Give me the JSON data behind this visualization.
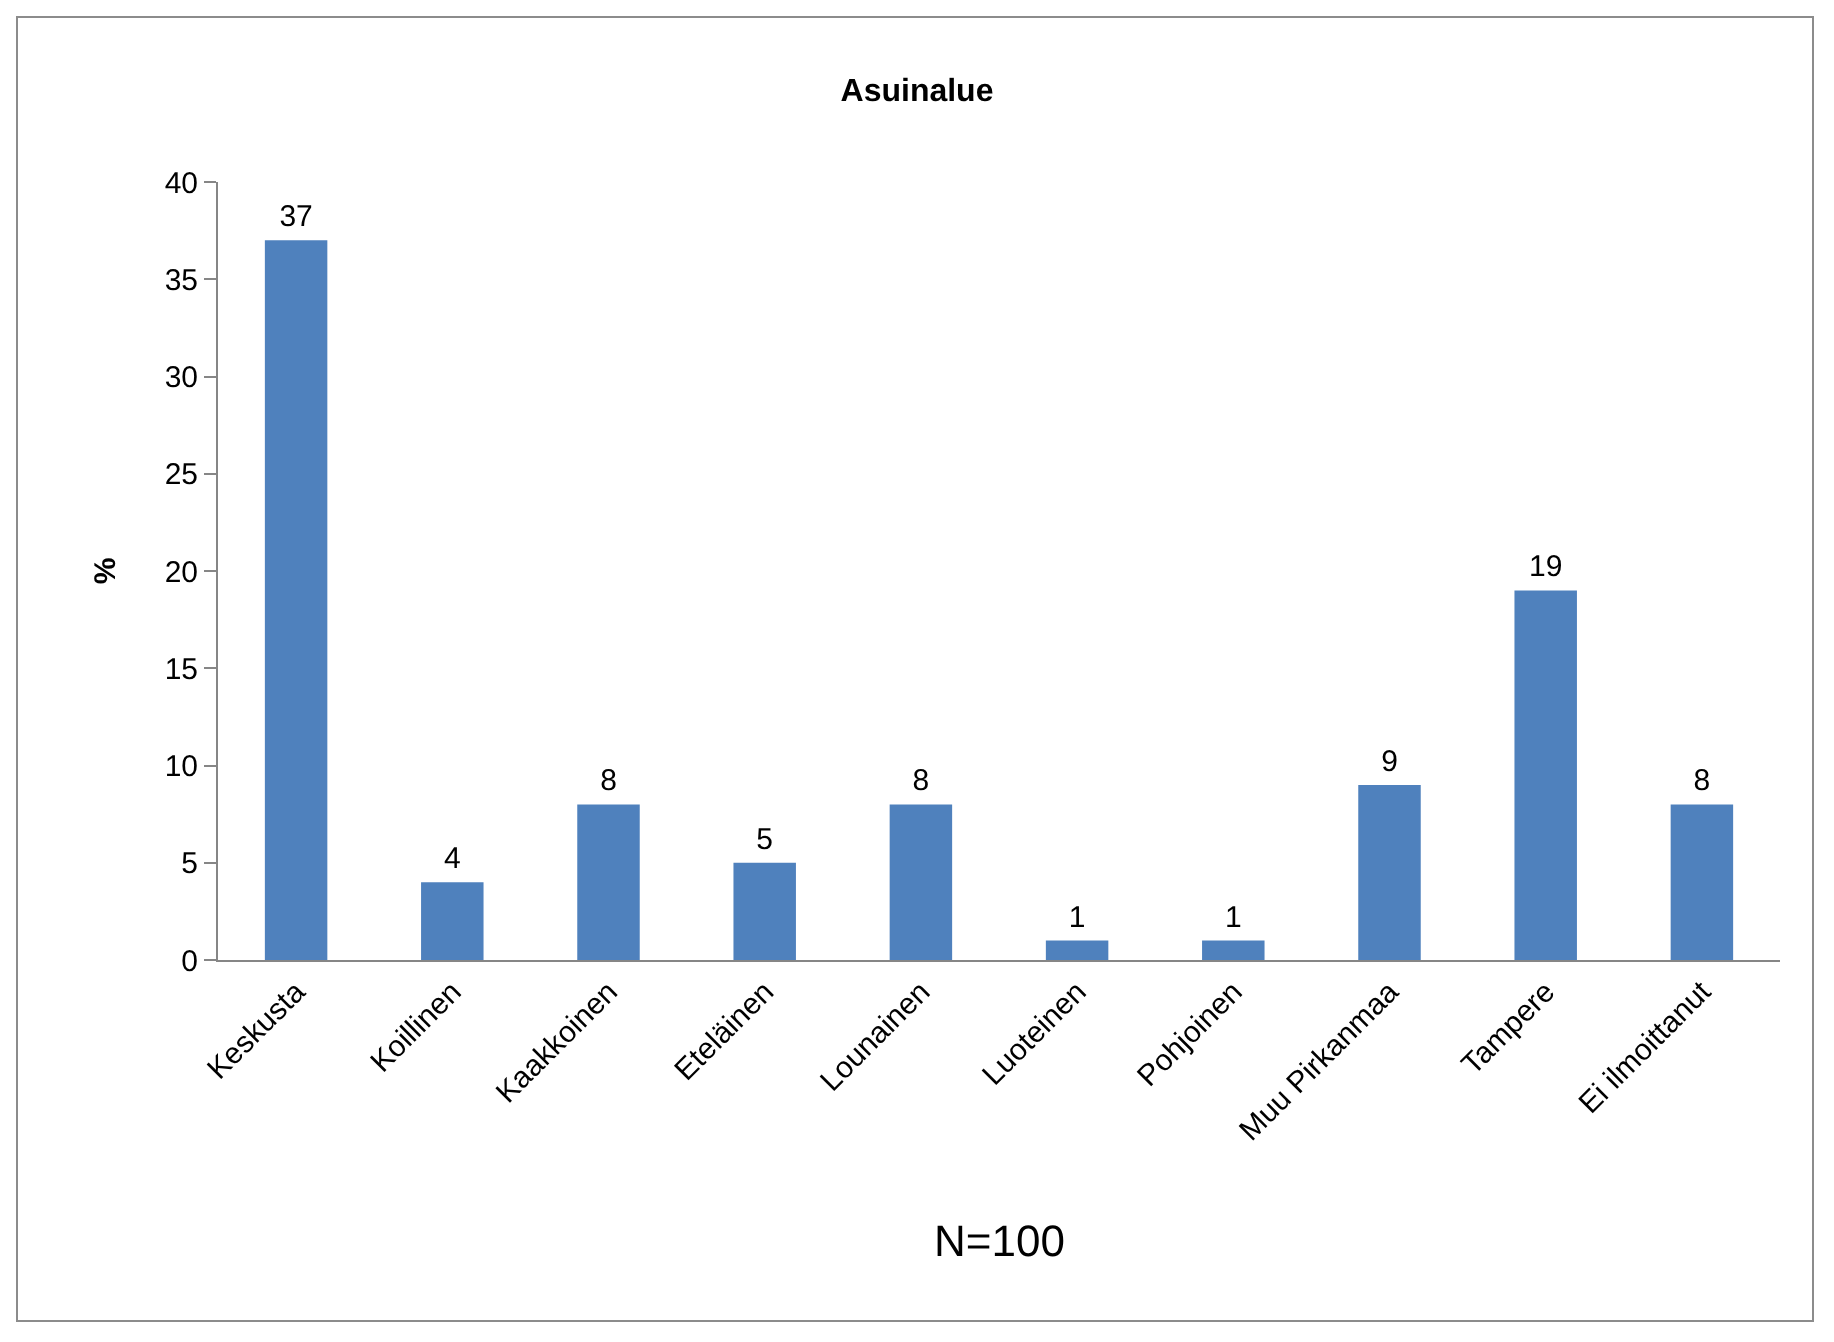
{
  "chart_data": {
    "type": "bar",
    "title": "Asuinalue",
    "ylabel": "%",
    "categories": [
      "Keskusta",
      "Koillinen",
      "Kaakkoinen",
      "Eteläinen",
      "Lounainen",
      "Luoteinen",
      "Pohjoinen",
      "Muu Pirkanmaa",
      "Tampere",
      "Ei ilmoittanut"
    ],
    "values": [
      37,
      4,
      8,
      5,
      8,
      1,
      1,
      9,
      19,
      8
    ],
    "color": "#4f81bd",
    "ylim": [
      0,
      40
    ],
    "yticks": [
      0,
      5,
      10,
      15,
      20,
      25,
      30,
      35,
      40
    ],
    "grid": false,
    "data_labels": true,
    "annotations": [
      "N=100"
    ]
  }
}
